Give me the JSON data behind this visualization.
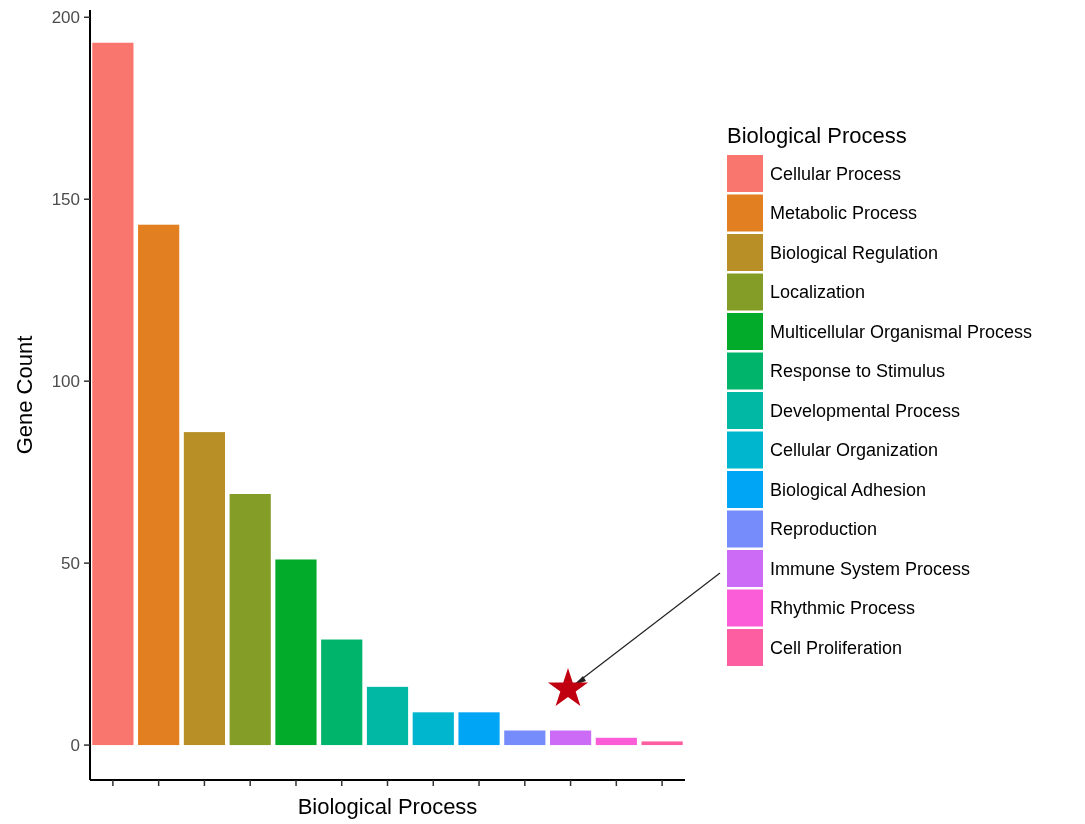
{
  "chart_data": {
    "type": "bar",
    "xlabel": "Biological Process",
    "ylabel": "Gene Count",
    "legend_title": "Biological Process",
    "categories": [
      null,
      null,
      null,
      null,
      null,
      null,
      null,
      null,
      null,
      null,
      null,
      null,
      null
    ],
    "series": [
      {
        "name": "Cellular Process",
        "color": "#f8766d",
        "values": [
          193,
          null,
          null,
          null,
          null,
          null,
          null,
          null,
          null,
          null,
          null,
          null,
          null
        ]
      },
      {
        "name": "Metabolic Process",
        "color": "#e27f20",
        "values": [
          null,
          143,
          null,
          null,
          null,
          null,
          null,
          null,
          null,
          null,
          null,
          null,
          null
        ]
      },
      {
        "name": "Biological Regulation",
        "color": "#b88f26",
        "values": [
          null,
          null,
          86,
          null,
          null,
          null,
          null,
          null,
          null,
          null,
          null,
          null,
          null
        ]
      },
      {
        "name": "Localization",
        "color": "#849d27",
        "values": [
          null,
          null,
          null,
          69,
          null,
          null,
          null,
          null,
          null,
          null,
          null,
          null,
          null
        ]
      },
      {
        "name": "Multicellular Organismal Process",
        "color": "#02ab2a",
        "values": [
          null,
          null,
          null,
          null,
          51,
          null,
          null,
          null,
          null,
          null,
          null,
          null,
          null
        ]
      },
      {
        "name": "Response to Stimulus",
        "color": "#00b46b",
        "values": [
          null,
          null,
          null,
          null,
          null,
          29,
          null,
          null,
          null,
          null,
          null,
          null,
          null
        ]
      },
      {
        "name": "Developmental Process",
        "color": "#00b8a3",
        "values": [
          null,
          null,
          null,
          null,
          null,
          null,
          16,
          null,
          null,
          null,
          null,
          null,
          null
        ]
      },
      {
        "name": "Cellular Organization",
        "color": "#00b6cf",
        "values": [
          null,
          null,
          null,
          null,
          null,
          null,
          null,
          9,
          null,
          null,
          null,
          null,
          null
        ]
      },
      {
        "name": "Biological Adhesion",
        "color": "#00a6f5",
        "values": [
          null,
          null,
          null,
          null,
          null,
          null,
          null,
          null,
          9,
          null,
          null,
          null,
          null
        ]
      },
      {
        "name": "Reproduction",
        "color": "#768cfb",
        "values": [
          null,
          null,
          null,
          null,
          null,
          null,
          null,
          null,
          null,
          4,
          null,
          null,
          null
        ]
      },
      {
        "name": "Immune System Process",
        "color": "#cc6cf6",
        "values": [
          null,
          null,
          null,
          null,
          null,
          null,
          null,
          null,
          null,
          null,
          4,
          null,
          null
        ]
      },
      {
        "name": "Rhythmic Process",
        "color": "#fb5cd8",
        "values": [
          null,
          null,
          null,
          null,
          null,
          null,
          null,
          null,
          null,
          null,
          null,
          2,
          null
        ]
      },
      {
        "name": "Cell Proliferation",
        "color": "#fd5da1",
        "values": [
          null,
          null,
          null,
          null,
          null,
          null,
          null,
          null,
          null,
          null,
          null,
          null,
          1
        ]
      }
    ],
    "ylim": [
      -9.6,
      202
    ],
    "yticks": [
      0,
      50,
      100,
      150,
      200
    ],
    "grid": false,
    "legend": "right"
  }
}
